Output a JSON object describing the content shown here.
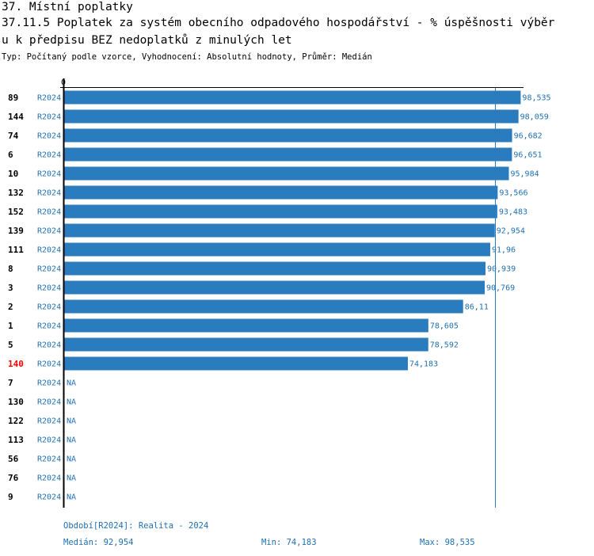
{
  "header": {
    "title_line1": "37. Místní poplatky",
    "title_line2": "37.11.5 Poplatek za systém obecního odpadového hospodářství  - % úspěšnosti výběr",
    "title_line3": "u k předpisu BEZ nedoplatků z minulých let",
    "subtitle": "Typ: Počítaný podle vzorce, Vyhodnocení: Absolutní hodnoty, Průměr: Medián"
  },
  "colors": {
    "bar": "#2b7bbf",
    "text_blue": "#1f6fb0",
    "highlight": "#ff0000",
    "axis": "#000000"
  },
  "chart_data": {
    "type": "bar",
    "orientation": "horizontal",
    "title": "37.11.5 Poplatek za systém obecního odpadového hospodářství - % úspěšnosti výběru k předpisu BEZ nedoplatků z minulých let",
    "axis_zero_label": "0",
    "xlim": [
      0,
      100
    ],
    "median_line": 92.954,
    "rows": [
      {
        "id": "89",
        "series": "R2024",
        "value": 98.535,
        "label": "98,535",
        "highlight": false
      },
      {
        "id": "144",
        "series": "R2024",
        "value": 98.059,
        "label": "98,059",
        "highlight": false
      },
      {
        "id": "74",
        "series": "R2024",
        "value": 96.682,
        "label": "96,682",
        "highlight": false
      },
      {
        "id": "6",
        "series": "R2024",
        "value": 96.651,
        "label": "96,651",
        "highlight": false
      },
      {
        "id": "10",
        "series": "R2024",
        "value": 95.984,
        "label": "95,984",
        "highlight": false
      },
      {
        "id": "132",
        "series": "R2024",
        "value": 93.566,
        "label": "93,566",
        "highlight": false
      },
      {
        "id": "152",
        "series": "R2024",
        "value": 93.483,
        "label": "93,483",
        "highlight": false
      },
      {
        "id": "139",
        "series": "R2024",
        "value": 92.954,
        "label": "92,954",
        "highlight": false
      },
      {
        "id": "111",
        "series": "R2024",
        "value": 91.96,
        "label": "91,96",
        "highlight": false
      },
      {
        "id": "8",
        "series": "R2024",
        "value": 90.939,
        "label": "90,939",
        "highlight": false
      },
      {
        "id": "3",
        "series": "R2024",
        "value": 90.769,
        "label": "90,769",
        "highlight": false
      },
      {
        "id": "2",
        "series": "R2024",
        "value": 86.11,
        "label": "86,11",
        "highlight": false
      },
      {
        "id": "1",
        "series": "R2024",
        "value": 78.605,
        "label": "78,605",
        "highlight": false
      },
      {
        "id": "5",
        "series": "R2024",
        "value": 78.592,
        "label": "78,592",
        "highlight": false
      },
      {
        "id": "140",
        "series": "R2024",
        "value": 74.183,
        "label": "74,183",
        "highlight": true
      },
      {
        "id": "7",
        "series": "R2024",
        "value": null,
        "label": "NA",
        "highlight": false
      },
      {
        "id": "130",
        "series": "R2024",
        "value": null,
        "label": "NA",
        "highlight": false
      },
      {
        "id": "122",
        "series": "R2024",
        "value": null,
        "label": "NA",
        "highlight": false
      },
      {
        "id": "113",
        "series": "R2024",
        "value": null,
        "label": "NA",
        "highlight": false
      },
      {
        "id": "56",
        "series": "R2024",
        "value": null,
        "label": "NA",
        "highlight": false
      },
      {
        "id": "76",
        "series": "R2024",
        "value": null,
        "label": "NA",
        "highlight": false
      },
      {
        "id": "9",
        "series": "R2024",
        "value": null,
        "label": "NA",
        "highlight": false
      }
    ]
  },
  "footer": {
    "period": "Období[R2024]: Realita - 2024",
    "median": "Medián: 92,954",
    "min": "Min: 74,183",
    "max": "Max: 98,535"
  }
}
